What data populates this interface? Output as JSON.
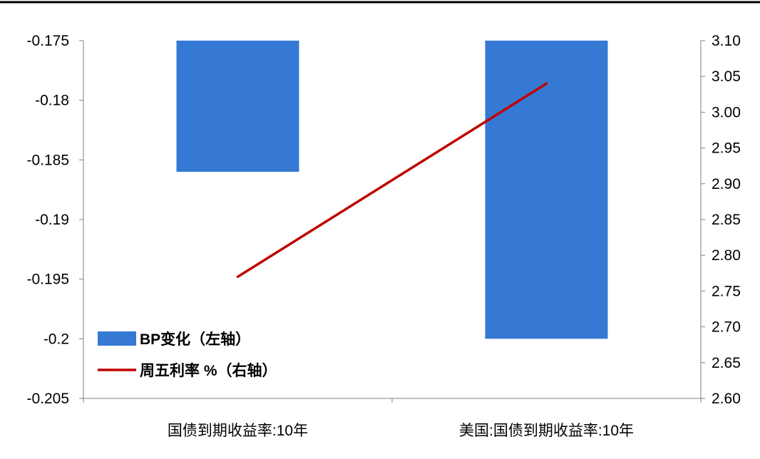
{
  "chart_data": {
    "type": "bar",
    "categories": [
      "国债到期收益率:10年",
      "美国:国债到期收益率:10年"
    ],
    "series": [
      {
        "name": "BP变化（左轴）",
        "type": "bar",
        "axis": "left",
        "values": [
          -0.186,
          -0.2
        ],
        "color": "#3579D4"
      },
      {
        "name": "周五利率 %（右轴）",
        "type": "line",
        "axis": "right",
        "values": [
          2.77,
          3.04
        ],
        "color": "#C00000"
      }
    ],
    "left_axis": {
      "ylim": [
        -0.205,
        -0.175
      ],
      "ticks": [
        -0.175,
        -0.18,
        -0.185,
        -0.19,
        -0.195,
        -0.2,
        -0.205
      ],
      "tick_labels": [
        "-0.175",
        "-0.18",
        "-0.185",
        "-0.19",
        "-0.195",
        "-0.2",
        "-0.205"
      ]
    },
    "right_axis": {
      "ylim": [
        2.6,
        3.1
      ],
      "ticks": [
        3.1,
        3.05,
        3.0,
        2.95,
        2.9,
        2.85,
        2.8,
        2.75,
        2.7,
        2.65,
        2.6
      ],
      "tick_labels": [
        "3.10",
        "3.05",
        "3.00",
        "2.95",
        "2.90",
        "2.85",
        "2.80",
        "2.75",
        "2.70",
        "2.65",
        "2.60"
      ]
    },
    "legend": "lower-left",
    "grid": false,
    "title": "",
    "xlabel": "",
    "ylabel": ""
  }
}
